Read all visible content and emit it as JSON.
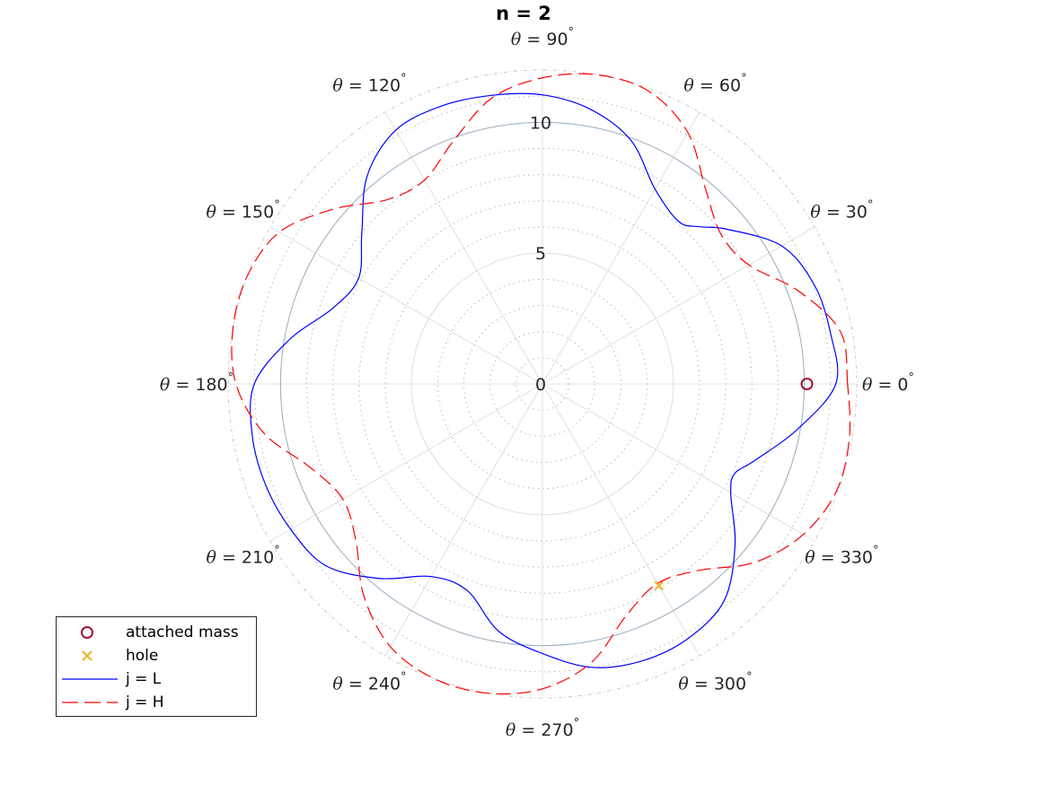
{
  "chart_data": {
    "type": "polar",
    "title": "n = 2",
    "theta_unit": "degrees",
    "r_range": [
      0,
      12
    ],
    "r_ticks": [
      0,
      5,
      10
    ],
    "r_tick_labels": [
      "0",
      "5",
      "10"
    ],
    "r_minor_step": 1,
    "angle_ticks": [
      {
        "theta": 0,
        "prefix": "θ",
        "text": " = 0",
        "sup": "°"
      },
      {
        "theta": 30,
        "prefix": "θ",
        "text": " = 30",
        "sup": "°"
      },
      {
        "theta": 60,
        "prefix": "θ",
        "text": " = 60",
        "sup": "°"
      },
      {
        "theta": 90,
        "prefix": "θ",
        "text": " = 90",
        "sup": "°"
      },
      {
        "theta": 120,
        "prefix": "θ",
        "text": " = 120",
        "sup": "°"
      },
      {
        "theta": 150,
        "prefix": "θ",
        "text": " = 150",
        "sup": "°"
      },
      {
        "theta": 180,
        "prefix": "θ",
        "text": " = 180",
        "sup": "°"
      },
      {
        "theta": 210,
        "prefix": "θ",
        "text": " = 210",
        "sup": "°"
      },
      {
        "theta": 240,
        "prefix": "θ",
        "text": " = 240",
        "sup": "°"
      },
      {
        "theta": 270,
        "prefix": "θ",
        "text": " = 270",
        "sup": "°"
      },
      {
        "theta": 300,
        "prefix": "θ",
        "text": " = 300",
        "sup": "°"
      },
      {
        "theta": 330,
        "prefix": "θ",
        "text": " = 330",
        "sup": "°"
      }
    ],
    "reference_circle": {
      "r": 10,
      "color": "#9ab0c4"
    },
    "grid": true,
    "legend_position": "bottom-left",
    "series": [
      {
        "name": "attached mass",
        "kind": "marker",
        "marker": "circle",
        "color": "#a2142f",
        "points": [
          {
            "theta": 0,
            "r": 10.1
          }
        ]
      },
      {
        "name": "hole",
        "kind": "marker",
        "marker": "x",
        "color": "#edb120",
        "points": [
          {
            "theta": 300,
            "r": 8.9
          }
        ]
      },
      {
        "name": "j = L",
        "kind": "line",
        "dash": "solid",
        "color": "#0000ff",
        "points": [
          {
            "theta": 0,
            "r": 11.2
          },
          {
            "theta": 10,
            "r": 11.17
          },
          {
            "theta": 20,
            "r": 11.05
          },
          {
            "theta": 30,
            "r": 10.55
          },
          {
            "theta": 40,
            "r": 9.2
          },
          {
            "theta": 45,
            "r": 8.5
          },
          {
            "theta": 50,
            "r": 8.1
          },
          {
            "theta": 60,
            "r": 8.6
          },
          {
            "theta": 70,
            "r": 9.9
          },
          {
            "theta": 80,
            "r": 10.65
          },
          {
            "theta": 90,
            "r": 11.05
          },
          {
            "theta": 100,
            "r": 11.2
          },
          {
            "theta": 110,
            "r": 11.3
          },
          {
            "theta": 120,
            "r": 11.2
          },
          {
            "theta": 130,
            "r": 10.4
          },
          {
            "theta": 140,
            "r": 9.0
          },
          {
            "theta": 150,
            "r": 8.1
          },
          {
            "theta": 160,
            "r": 8.5
          },
          {
            "theta": 170,
            "r": 9.8
          },
          {
            "theta": 180,
            "r": 11.0
          },
          {
            "theta": 190,
            "r": 11.25
          },
          {
            "theta": 200,
            "r": 11.25
          },
          {
            "theta": 210,
            "r": 11.1
          },
          {
            "theta": 220,
            "r": 10.8
          },
          {
            "theta": 230,
            "r": 9.7
          },
          {
            "theta": 240,
            "r": 8.5
          },
          {
            "theta": 250,
            "r": 8.4
          },
          {
            "theta": 260,
            "r": 9.6
          },
          {
            "theta": 270,
            "r": 10.3
          },
          {
            "theta": 280,
            "r": 11.0
          },
          {
            "theta": 290,
            "r": 11.25
          },
          {
            "theta": 300,
            "r": 11.2
          },
          {
            "theta": 310,
            "r": 10.8
          },
          {
            "theta": 320,
            "r": 9.6
          },
          {
            "theta": 330,
            "r": 8.3
          },
          {
            "theta": 335,
            "r": 8.1
          },
          {
            "theta": 340,
            "r": 8.6
          },
          {
            "theta": 350,
            "r": 9.9
          },
          {
            "theta": 360,
            "r": 11.2
          }
        ]
      },
      {
        "name": "j = H",
        "kind": "line",
        "dash": "dashed",
        "color": "#ff0000",
        "points": [
          {
            "theta": 0,
            "r": 11.65
          },
          {
            "theta": 10,
            "r": 11.55
          },
          {
            "theta": 20,
            "r": 10.4
          },
          {
            "theta": 30,
            "r": 9.1
          },
          {
            "theta": 40,
            "r": 8.9
          },
          {
            "theta": 50,
            "r": 9.7
          },
          {
            "theta": 60,
            "r": 11.1
          },
          {
            "theta": 70,
            "r": 11.9
          },
          {
            "theta": 80,
            "r": 12.0
          },
          {
            "theta": 90,
            "r": 11.7
          },
          {
            "theta": 100,
            "r": 11.1
          },
          {
            "theta": 110,
            "r": 9.9
          },
          {
            "theta": 120,
            "r": 9.0
          },
          {
            "theta": 130,
            "r": 9.2
          },
          {
            "theta": 140,
            "r": 10.4
          },
          {
            "theta": 150,
            "r": 11.6
          },
          {
            "theta": 160,
            "r": 12.0
          },
          {
            "theta": 170,
            "r": 12.0
          },
          {
            "theta": 180,
            "r": 11.7
          },
          {
            "theta": 190,
            "r": 10.8
          },
          {
            "theta": 200,
            "r": 9.4
          },
          {
            "theta": 210,
            "r": 8.8
          },
          {
            "theta": 220,
            "r": 9.3
          },
          {
            "theta": 230,
            "r": 10.6
          },
          {
            "theta": 240,
            "r": 11.6
          },
          {
            "theta": 250,
            "r": 12.0
          },
          {
            "theta": 260,
            "r": 12.0
          },
          {
            "theta": 270,
            "r": 11.65
          },
          {
            "theta": 280,
            "r": 10.8
          },
          {
            "theta": 290,
            "r": 9.4
          },
          {
            "theta": 300,
            "r": 8.8
          },
          {
            "theta": 310,
            "r": 9.3
          },
          {
            "theta": 320,
            "r": 10.6
          },
          {
            "theta": 330,
            "r": 11.5
          },
          {
            "theta": 340,
            "r": 11.95
          },
          {
            "theta": 350,
            "r": 11.9
          },
          {
            "theta": 360,
            "r": 11.65
          }
        ]
      }
    ]
  }
}
